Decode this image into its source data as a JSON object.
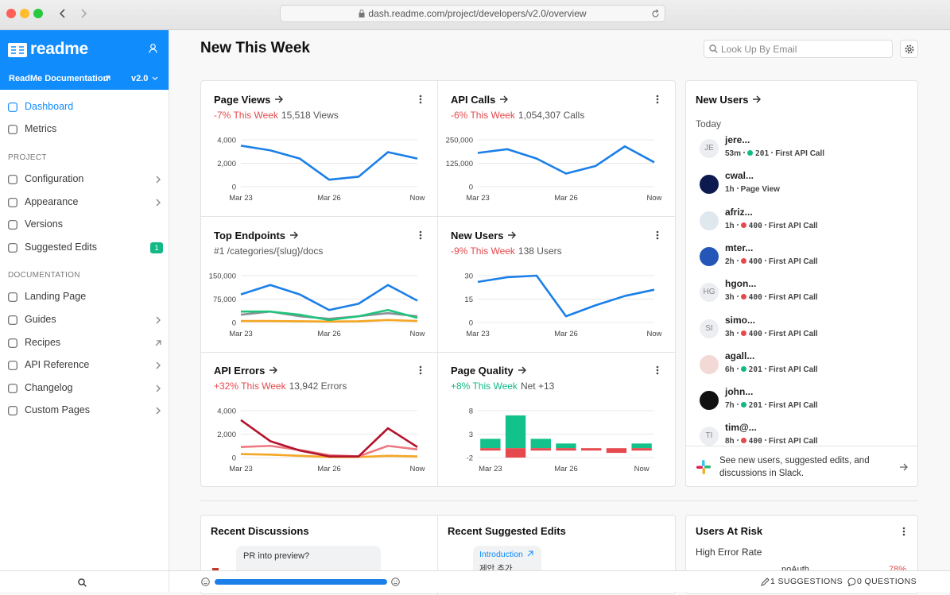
{
  "browser": {
    "url": "dash.readme.com/project/developers/v2.0/overview"
  },
  "sidebar": {
    "brand": "readme",
    "project": "ReadMe Documentation",
    "version": "v2.0",
    "top_items": [
      "Dashboard",
      "Metrics"
    ],
    "groups": [
      {
        "heading": "PROJECT",
        "items": [
          "Configuration",
          "Appearance",
          "Versions",
          "Suggested Edits"
        ]
      },
      {
        "heading": "DOCUMENTATION",
        "items": [
          "Landing Page",
          "Guides",
          "Recipes",
          "API Reference",
          "Changelog",
          "Custom Pages"
        ]
      }
    ],
    "badge": 1
  },
  "header": {
    "title": "New This Week",
    "search_placeholder": "Look Up By Email"
  },
  "cards": [
    {
      "title": "Page Views",
      "change": "-7% This Week",
      "change_color": "#e5484d",
      "summary": "15,518 Views",
      "chart_data": {
        "type": "line",
        "categories": [
          "Mar 23",
          null,
          null,
          "Mar 26",
          null,
          null,
          "Now"
        ],
        "ylim": [
          0,
          4000
        ],
        "yticks": [
          0,
          {
            "value": 2000,
            "label": "2,000"
          },
          {
            "value": 4000,
            "label": "4,000"
          }
        ],
        "series": [
          {
            "color": "#1a7fe8",
            "values": [
              3500,
              3100,
              2400,
              600,
              850,
              2950,
              2400
            ]
          }
        ]
      }
    },
    {
      "title": "API Calls",
      "change": "-6% This Week",
      "change_color": "#e5484d",
      "summary": "1,054,307 Calls",
      "chart_data": {
        "type": "line",
        "categories": [
          "Mar 23",
          null,
          null,
          "Mar 26",
          null,
          null,
          "Now"
        ],
        "ylim": [
          0,
          250000
        ],
        "yticks": [
          0,
          {
            "value": 125000,
            "label": "125,000"
          },
          {
            "value": 250000,
            "label": "250,000"
          }
        ],
        "series": [
          {
            "color": "#1a7fe8",
            "values": [
              180000,
              200000,
              150000,
              70000,
              110000,
              215000,
              130000
            ]
          }
        ]
      }
    },
    {
      "title": "Top Endpoints",
      "summary": "#1 /categories/{slug}/docs",
      "chart_data": {
        "type": "line",
        "categories": [
          "Mar 23",
          null,
          null,
          "Mar 26",
          null,
          null,
          "Now"
        ],
        "ylim": [
          0,
          150000
        ],
        "yticks": [
          0,
          {
            "value": 75000,
            "label": "75,000"
          },
          {
            "value": 150000,
            "label": "150,000"
          }
        ],
        "series": [
          {
            "color": "#f5a623",
            "values": [
              5000,
              5000,
              4000,
              3000,
              4000,
              8000,
              5000
            ]
          },
          {
            "color": "#8a8f98",
            "values": [
              25000,
              35000,
              20000,
              12000,
              20000,
              30000,
              20000
            ]
          },
          {
            "color": "#20c47c",
            "values": [
              35000,
              35000,
              25000,
              8000,
              20000,
              40000,
              15000
            ]
          },
          {
            "color": "#1a7fe8",
            "values": [
              90000,
              120000,
              90000,
              40000,
              60000,
              120000,
              70000
            ]
          }
        ]
      }
    },
    {
      "title": "New Users",
      "change": "-9% This Week",
      "change_color": "#e5484d",
      "summary": "138 Users",
      "chart_data": {
        "type": "line",
        "categories": [
          "Mar 23",
          null,
          null,
          "Mar 26",
          null,
          null,
          "Now"
        ],
        "ylim": [
          0,
          30
        ],
        "yticks": [
          0,
          15,
          30
        ],
        "series": [
          {
            "color": "#1a7fe8",
            "values": [
              26,
              29,
              30,
              4,
              11,
              17,
              21
            ]
          }
        ]
      }
    },
    {
      "title": "API Errors",
      "change": "+32% This Week",
      "change_color": "#e5484d",
      "summary": "13,942 Errors",
      "chart_data": {
        "type": "line",
        "categories": [
          "Mar 23",
          null,
          null,
          "Mar 26",
          null,
          null,
          "Now"
        ],
        "ylim": [
          0,
          4000
        ],
        "yticks": [
          0,
          {
            "value": 2000,
            "label": "2,000"
          },
          {
            "value": 4000,
            "label": "4,000"
          }
        ],
        "series": [
          {
            "color": "#f5a623",
            "values": [
              300,
              250,
              150,
              50,
              50,
              150,
              100
            ]
          },
          {
            "color": "#ec7a82",
            "values": [
              900,
              1000,
              650,
              200,
              100,
              1000,
              700
            ]
          },
          {
            "color": "#b3132c",
            "values": [
              3200,
              1400,
              600,
              100,
              100,
              2500,
              900
            ]
          }
        ]
      }
    },
    {
      "title": "Page Quality",
      "change": "+8% This Week",
      "change_color": "#12b886",
      "summary": "Net +13",
      "chart_data": {
        "type": "bar",
        "categories": [
          "Mar 23",
          null,
          null,
          "Mar 26",
          null,
          null,
          "Now"
        ],
        "ylim": [
          -2,
          8
        ],
        "yticks": [
          -2,
          3,
          8
        ],
        "series": [
          {
            "color": "#12c28a",
            "values": [
              2,
              7,
              2,
              1,
              0,
              0,
              1
            ]
          },
          {
            "color": "#e5484d",
            "values": [
              -0.5,
              -2,
              -0.5,
              -0.5,
              -0.5,
              -1,
              -0.5
            ]
          }
        ]
      }
    }
  ],
  "new_users": {
    "title": "New Users",
    "group": "Today",
    "users": [
      {
        "avatar": "JE",
        "name": "jere...",
        "time": "53m",
        "code": "201",
        "status_color": "#12b886",
        "event": "First API Call"
      },
      {
        "avatar_color": "#0d1a4f",
        "name": "cwal...",
        "time": "1h",
        "event": "Page View"
      },
      {
        "avatar_color": "#dfe7ef",
        "name": "afriz...",
        "time": "1h",
        "code": "400",
        "status_color": "#e5484d",
        "event": "First API Call"
      },
      {
        "avatar_color": "#2456b8",
        "name": "mter...",
        "time": "2h",
        "code": "400",
        "status_color": "#e5484d",
        "event": "First API Call"
      },
      {
        "avatar": "HG",
        "name": "hgon...",
        "time": "3h",
        "code": "400",
        "status_color": "#e5484d",
        "event": "First API Call"
      },
      {
        "avatar": "SI",
        "name": "simo...",
        "time": "3h",
        "code": "400",
        "status_color": "#e5484d",
        "event": "First API Call"
      },
      {
        "avatar_color": "#f3d9d6",
        "name": "agall...",
        "time": "6h",
        "code": "201",
        "status_color": "#12b886",
        "event": "First API Call"
      },
      {
        "avatar_color": "#111111",
        "name": "john...",
        "time": "7h",
        "code": "201",
        "status_color": "#12b886",
        "event": "First API Call"
      },
      {
        "avatar": "TI",
        "name": "tim@...",
        "time": "8h",
        "code": "400",
        "status_color": "#e5484d",
        "event": "First API Call"
      }
    ],
    "slack_note": "See new users, suggested edits, and discussions in Slack."
  },
  "bottom": {
    "discussions": {
      "title": "Recent Discussions",
      "bubble": "PR into preview?"
    },
    "suggested_edits": {
      "title": "Recent Suggested Edits",
      "page": "Introduction",
      "text": "제안 추가"
    },
    "users_at_risk": {
      "title": "Users At Risk",
      "group": "High Error Rate",
      "user": "noAuth",
      "rate": "78%"
    }
  },
  "footer": {
    "suggestions": "1 SUGGESTIONS",
    "questions": "0 QUESTIONS"
  }
}
